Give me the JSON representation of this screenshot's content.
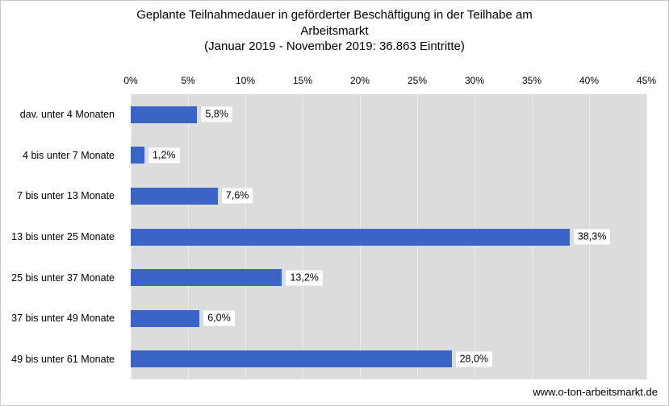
{
  "chart_data": {
    "type": "bar",
    "orientation": "horizontal",
    "title": "Geplante Teilnahmedauer in geförderter Beschäftigung in der Teilhabe am Arbeitsmarkt (Januar 2019 - November 2019: 36.863 Eintritte)",
    "title_lines": [
      "Geplante Teilnahmedauer in geförderter Beschäftigung in der Teilhabe am",
      "Arbeitsmarkt",
      "(Januar 2019 - November 2019: 36.863 Eintritte)"
    ],
    "categories": [
      "dav. unter 4 Monaten",
      "4 bis unter 7 Monate",
      "7 bis unter 13 Monate",
      "13 bis unter 25 Monate",
      "25 bis unter 37 Monate",
      "37 bis unter 49 Monate",
      "49 bis unter 61 Monate"
    ],
    "values": [
      5.8,
      1.2,
      7.6,
      38.3,
      13.2,
      6.0,
      28.0
    ],
    "value_labels": [
      "5,8%",
      "1,2%",
      "7,6%",
      "38,3%",
      "13,2%",
      "6,0%",
      "28,0%"
    ],
    "x_ticks": [
      0,
      5,
      10,
      15,
      20,
      25,
      30,
      35,
      40,
      45
    ],
    "x_tick_labels": [
      "0%",
      "5%",
      "10%",
      "15%",
      "20%",
      "25%",
      "30%",
      "35%",
      "40%",
      "45%"
    ],
    "xlim": [
      0,
      45
    ],
    "xlabel": "",
    "ylabel": "",
    "grid": true,
    "legend": false,
    "bar_color": "#3a64c6",
    "plot_bg": "#dcdcdc",
    "gridline_color": "#ebebeb",
    "label_box_color": "#ffffff",
    "text_color": "#000000"
  },
  "footer": {
    "text": "www.o-ton-arbeitsmarkt.de"
  }
}
